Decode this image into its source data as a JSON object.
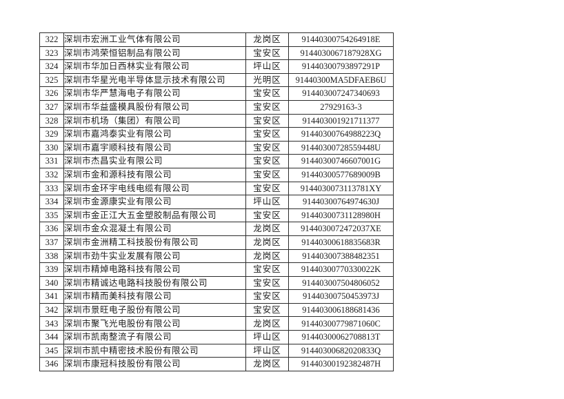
{
  "page": {
    "background_color": "#ffffff",
    "text_color": "#1c1c1c",
    "border_color": "#2b2b2b"
  },
  "table": {
    "columns": [
      {
        "key": "no"
      },
      {
        "key": "company"
      },
      {
        "key": "district"
      },
      {
        "key": "code"
      }
    ],
    "rows": [
      {
        "no": "322",
        "company": "深圳市宏洲工业气体有限公司",
        "district": "龙岗区",
        "code": "91440300754264918E"
      },
      {
        "no": "323",
        "company": "深圳市鸿荣恒铝制品有限公司",
        "district": "宝安区",
        "code": "9144030067187928XG"
      },
      {
        "no": "324",
        "company": "深圳市华加日西林实业有限公司",
        "district": "坪山区",
        "code": "91440300793897291P"
      },
      {
        "no": "325",
        "company": "深圳市华星光电半导体显示技术有限公司",
        "district": "光明区",
        "code": "91440300MA5DFAEB6U"
      },
      {
        "no": "326",
        "company": "深圳市华严慧海电子有限公司",
        "district": "宝安区",
        "code": "914403007247340693"
      },
      {
        "no": "327",
        "company": "深圳市华益盛模具股份有限公司",
        "district": "宝安区",
        "code": "27929163-3"
      },
      {
        "no": "328",
        "company": "深圳市机场（集团）有限公司",
        "district": "宝安区",
        "code": "914403001921711377"
      },
      {
        "no": "329",
        "company": "深圳市嘉鸿泰实业有限公司",
        "district": "宝安区",
        "code": "91440300764988223Q"
      },
      {
        "no": "330",
        "company": "深圳市嘉宇顺科技有限公司",
        "district": "宝安区",
        "code": "91440300728559448U"
      },
      {
        "no": "331",
        "company": "深圳市杰昌实业有限公司",
        "district": "宝安区",
        "code": "91440300746607001G"
      },
      {
        "no": "332",
        "company": "深圳市金和源科技有限公司",
        "district": "宝安区",
        "code": "91440300577689009B"
      },
      {
        "no": "333",
        "company": "深圳市金环宇电线电缆有限公司",
        "district": "宝安区",
        "code": "9144030073113781XY"
      },
      {
        "no": "334",
        "company": "深圳市金源康实业有限公司",
        "district": "坪山区",
        "code": "91440300764974630J"
      },
      {
        "no": "335",
        "company": "深圳市金正江大五金塑胶制品有限公司",
        "district": "宝安区",
        "code": "91440300731128980H"
      },
      {
        "no": "336",
        "company": "深圳市金众混凝土有限公司",
        "district": "龙岗区",
        "code": "9144030072472037XE"
      },
      {
        "no": "337",
        "company": "深圳市金洲精工科技股份有限公司",
        "district": "龙岗区",
        "code": "91440300618835683R"
      },
      {
        "no": "338",
        "company": "深圳市劲牛实业发展有限公司",
        "district": "龙岗区",
        "code": "914403007388482351"
      },
      {
        "no": "339",
        "company": "深圳市精焯电路科技有限公司",
        "district": "宝安区",
        "code": "91440300770330022K"
      },
      {
        "no": "340",
        "company": "深圳市精诚达电路科技股份有限公司",
        "district": "宝安区",
        "code": "914403007504806052"
      },
      {
        "no": "341",
        "company": "深圳市精而美科技有限公司",
        "district": "宝安区",
        "code": "91440300750453973J"
      },
      {
        "no": "342",
        "company": "深圳市景旺电子股份有限公司",
        "district": "宝安区",
        "code": "914403006188681436"
      },
      {
        "no": "343",
        "company": "深圳市聚飞光电股份有限公司",
        "district": "龙岗区",
        "code": "91440300779871060C"
      },
      {
        "no": "344",
        "company": "深圳市凯南整流子有限公司",
        "district": "坪山区",
        "code": "91440300062708813T"
      },
      {
        "no": "345",
        "company": "深圳市凯中精密技术股份有限公司",
        "district": "坪山区",
        "code": "91440300682020833Q"
      },
      {
        "no": "346",
        "company": "深圳市康冠科技股份有限公司",
        "district": "龙岗区",
        "code": "91440300192382487H"
      }
    ]
  }
}
